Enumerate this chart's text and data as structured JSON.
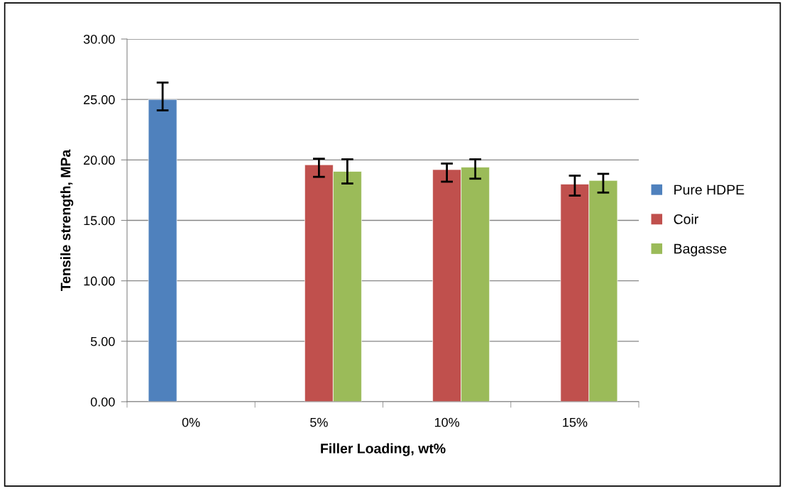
{
  "chart_data": {
    "type": "bar",
    "xlabel": "Filler Loading, wt%",
    "ylabel": "Tensile strength, MPa",
    "categories": [
      "0%",
      "5%",
      "10%",
      "15%"
    ],
    "series": [
      {
        "name": "Pure HDPE",
        "color": "#4f81bd",
        "values": [
          25.0,
          null,
          null,
          null
        ],
        "errors": [
          [
            24.1,
            26.4
          ],
          null,
          null,
          null
        ]
      },
      {
        "name": "Coir",
        "color": "#c0504d",
        "values": [
          null,
          19.6,
          19.2,
          18.0
        ],
        "errors": [
          null,
          [
            18.6,
            20.1
          ],
          [
            18.2,
            19.7
          ],
          [
            17.05,
            18.7
          ]
        ]
      },
      {
        "name": "Bagasse",
        "color": "#9bbb59",
        "values": [
          null,
          19.05,
          19.4,
          18.3
        ],
        "errors": [
          null,
          [
            18.05,
            20.05
          ],
          [
            18.45,
            20.05
          ],
          [
            17.3,
            18.85
          ]
        ]
      }
    ],
    "ylim": [
      0,
      30
    ],
    "yticks": [
      {
        "value": 0,
        "label": "0.00"
      },
      {
        "value": 5,
        "label": "5.00"
      },
      {
        "value": 10,
        "label": "10.00"
      },
      {
        "value": 15,
        "label": "15.00"
      },
      {
        "value": 20,
        "label": "20.00"
      },
      {
        "value": 25,
        "label": "25.00"
      },
      {
        "value": 30,
        "label": "30.00"
      }
    ],
    "grid": "y",
    "legend": "right"
  }
}
